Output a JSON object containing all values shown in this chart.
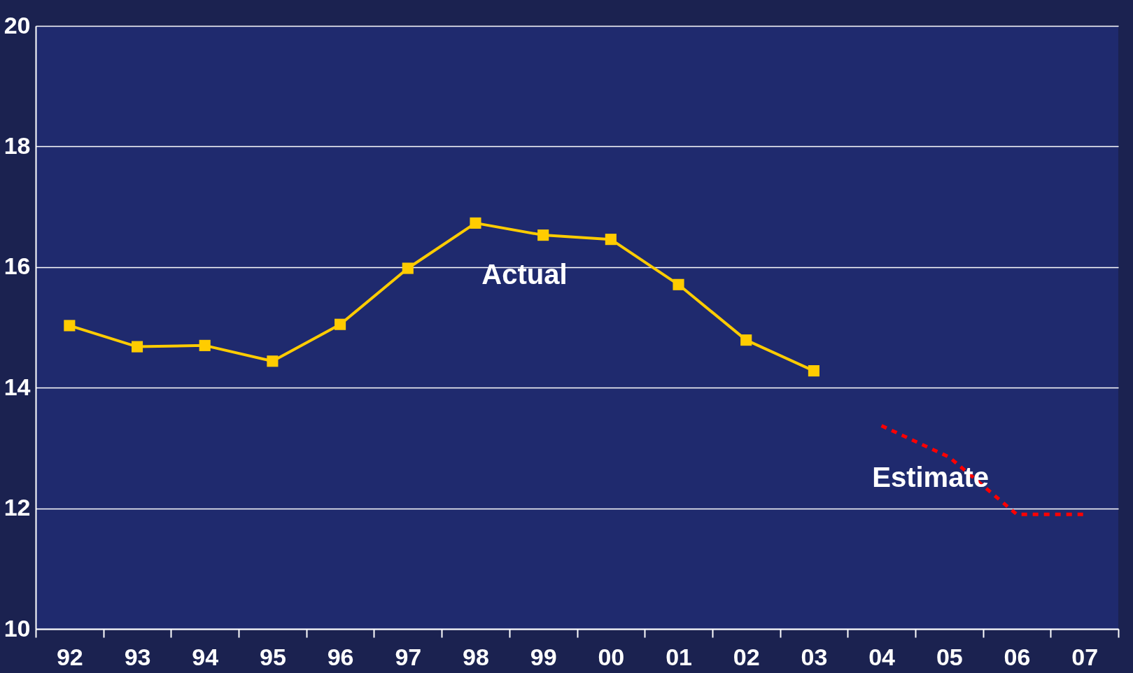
{
  "chart_data": {
    "type": "line",
    "categories": [
      "92",
      "93",
      "94",
      "95",
      "96",
      "97",
      "98",
      "99",
      "00",
      "01",
      "02",
      "03",
      "04",
      "05",
      "06",
      "07"
    ],
    "series": [
      {
        "name": "Actual",
        "color": "#ffcc00",
        "marker": "square",
        "line_style": "solid",
        "values": [
          15.03,
          14.68,
          14.7,
          14.44,
          15.05,
          15.98,
          16.73,
          16.53,
          16.46,
          15.71,
          14.79,
          14.28,
          null,
          null,
          null,
          null
        ]
      },
      {
        "name": "Estimate",
        "color": "#ff0000",
        "marker": "none",
        "line_style": "dashed",
        "values": [
          null,
          null,
          null,
          null,
          null,
          null,
          null,
          null,
          null,
          null,
          null,
          null,
          13.37,
          12.85,
          11.9,
          11.9
        ]
      }
    ],
    "ylim": [
      10,
      20
    ],
    "yticks": [
      10,
      12,
      14,
      16,
      18,
      20
    ],
    "grid": "y"
  }
}
